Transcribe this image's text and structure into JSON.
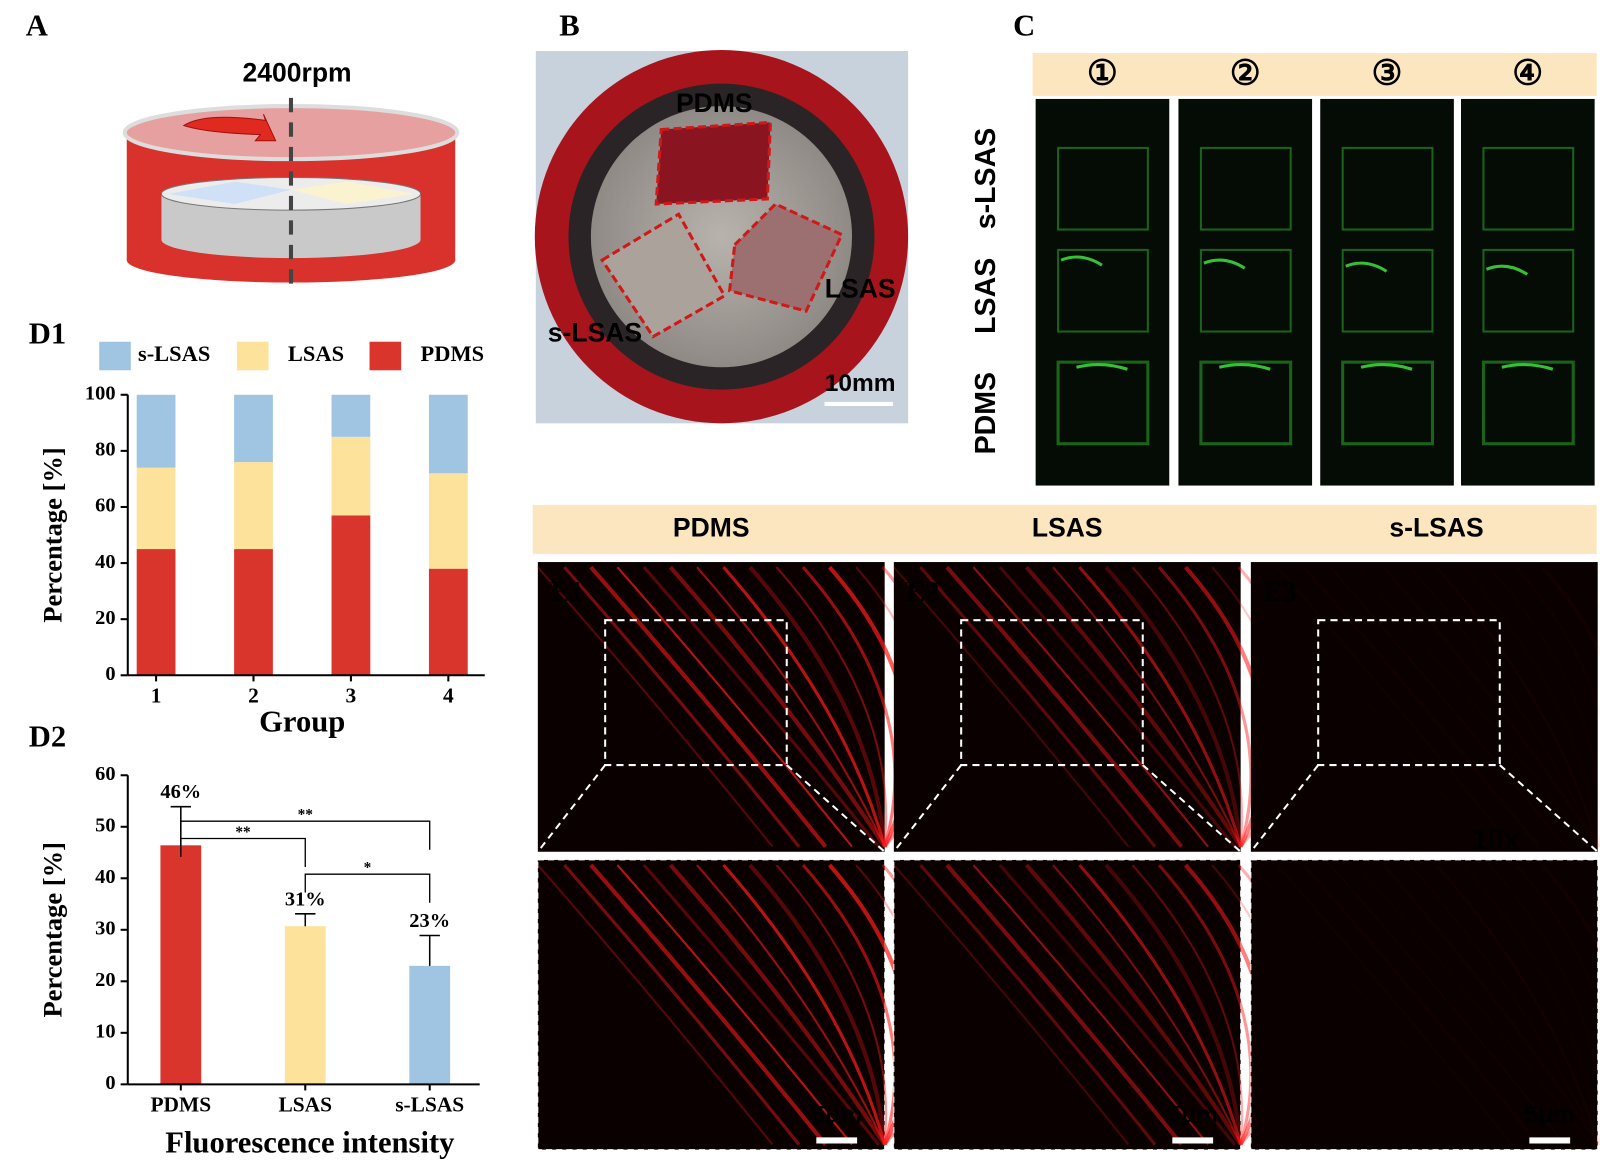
{
  "panels": {
    "a": {
      "label": "A",
      "speed": "2400rpm"
    },
    "b": {
      "label": "B",
      "samples": [
        "PDMS",
        "LSAS",
        "s-LSAS"
      ],
      "scale_bar": "10mm"
    },
    "c": {
      "label": "C",
      "columns": [
        "①",
        "②",
        "③",
        "④"
      ],
      "rows": [
        "s-LSAS",
        "LSAS",
        "PDMS"
      ]
    },
    "e": {
      "columns": [
        "PDMS",
        "LSAS",
        "s-LSAS"
      ],
      "images": [
        "E1",
        "E2",
        "E3"
      ],
      "magnification": "10x",
      "scale_bar": "5μm"
    }
  },
  "chart_data": [
    {
      "type": "bar",
      "label": "D1",
      "stacked": true,
      "categories": [
        "1",
        "2",
        "3",
        "4"
      ],
      "series": [
        {
          "name": "s-LSAS",
          "color": "#a0c5e3",
          "values": [
            26,
            24,
            15,
            28
          ]
        },
        {
          "name": "LSAS",
          "color": "#fde29b",
          "values": [
            29,
            31,
            28,
            34
          ]
        },
        {
          "name": "PDMS",
          "color": "#d9352c",
          "values": [
            45,
            45,
            57,
            38
          ]
        }
      ],
      "x_label": "Group",
      "y_label": "Percentage [%]",
      "ylim": [
        0,
        100
      ],
      "yticks": [
        0,
        20,
        40,
        60,
        80,
        100
      ]
    },
    {
      "type": "bar",
      "label": "D2",
      "categories": [
        "PDMS",
        "LSAS",
        "s-LSAS"
      ],
      "values": [
        46.4,
        30.7,
        23.0
      ],
      "errors": [
        7.5,
        2.4,
        5.9
      ],
      "value_labels": [
        "46%",
        "31%",
        "23%"
      ],
      "colors": [
        "#d9352c",
        "#fde29b",
        "#a0c5e3"
      ],
      "significance": [
        {
          "between": [
            "PDMS",
            "s-LSAS"
          ],
          "label": "**"
        },
        {
          "between": [
            "PDMS",
            "LSAS"
          ],
          "label": "**"
        },
        {
          "between": [
            "LSAS",
            "s-LSAS"
          ],
          "label": "*"
        }
      ],
      "x_label": "Fluorescence intensity",
      "y_label": "Percentage [%]",
      "ylim": [
        0,
        60
      ],
      "yticks": [
        0,
        10,
        20,
        30,
        40,
        50,
        60
      ]
    }
  ]
}
